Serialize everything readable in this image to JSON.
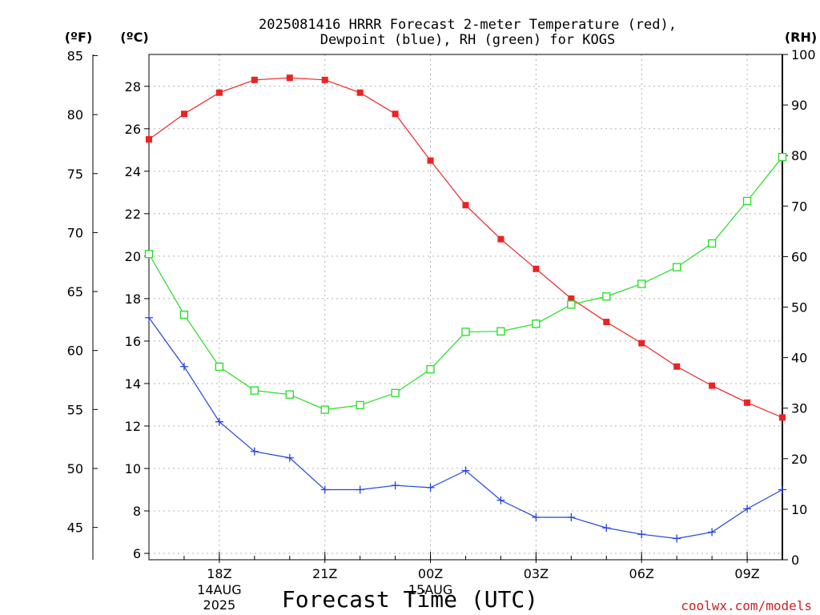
{
  "chart_data": {
    "type": "line",
    "title_line1": "2025081416 HRRR Forecast 2-meter Temperature (red),",
    "title_line2": "Dewpoint (blue), RH (green) for KOGS",
    "unit_f": "(ºF)",
    "unit_c": "(ºC)",
    "unit_rh": "(RH)",
    "xlabel": "Forecast Time (UTC)",
    "credit": "coolwx.com/models",
    "x_hours": [
      16,
      17,
      18,
      19,
      20,
      21,
      22,
      23,
      24,
      25,
      26,
      27,
      28,
      29,
      30,
      31,
      32,
      33,
      34
    ],
    "x_ticks": [
      {
        "hour": 18,
        "label": "18Z",
        "date": "14AUG",
        "year": "2025"
      },
      {
        "hour": 21,
        "label": "21Z"
      },
      {
        "hour": 24,
        "label": "00Z",
        "date": "15AUG"
      },
      {
        "hour": 27,
        "label": "03Z"
      },
      {
        "hour": 30,
        "label": "06Z"
      },
      {
        "hour": 33,
        "label": "09Z"
      }
    ],
    "xlim": [
      16,
      34
    ],
    "y_celsius": {
      "range": [
        5.7,
        29.5
      ],
      "ticks": [
        6,
        8,
        10,
        12,
        14,
        16,
        18,
        20,
        22,
        24,
        26,
        28
      ]
    },
    "y_fahrenheit": {
      "ticks": [
        45,
        50,
        55,
        60,
        65,
        70,
        75,
        80,
        85
      ]
    },
    "y_rh": {
      "range": [
        0,
        100
      ],
      "ticks": [
        0,
        10,
        20,
        30,
        40,
        50,
        60,
        70,
        80,
        90,
        100
      ]
    },
    "grid": true,
    "series": [
      {
        "key": "temperature",
        "unit": "C",
        "color": "#ee2222",
        "marker": "filled-square",
        "values": [
          25.5,
          26.7,
          27.7,
          28.3,
          28.4,
          28.3,
          27.7,
          26.7,
          24.5,
          22.4,
          20.8,
          19.4,
          18.0,
          16.9,
          15.9,
          14.8,
          13.9,
          13.1,
          12.4
        ]
      },
      {
        "key": "dewpoint",
        "unit": "C",
        "color": "#2244dd",
        "marker": "plus",
        "values": [
          17.1,
          14.8,
          12.2,
          10.8,
          10.5,
          9.0,
          9.0,
          9.2,
          9.1,
          9.9,
          8.5,
          7.7,
          7.7,
          7.2,
          6.9,
          6.7,
          7.0,
          8.1,
          9.0
        ]
      },
      {
        "key": "rh",
        "unit": "%",
        "color": "#22dd22",
        "marker": "open-square",
        "values": [
          60.5,
          48.5,
          38.2,
          33.5,
          32.7,
          29.7,
          30.6,
          33.0,
          37.7,
          45.1,
          45.2,
          46.7,
          50.5,
          52.1,
          54.6,
          57.9,
          62.6,
          71.0,
          79.7
        ]
      }
    ]
  }
}
